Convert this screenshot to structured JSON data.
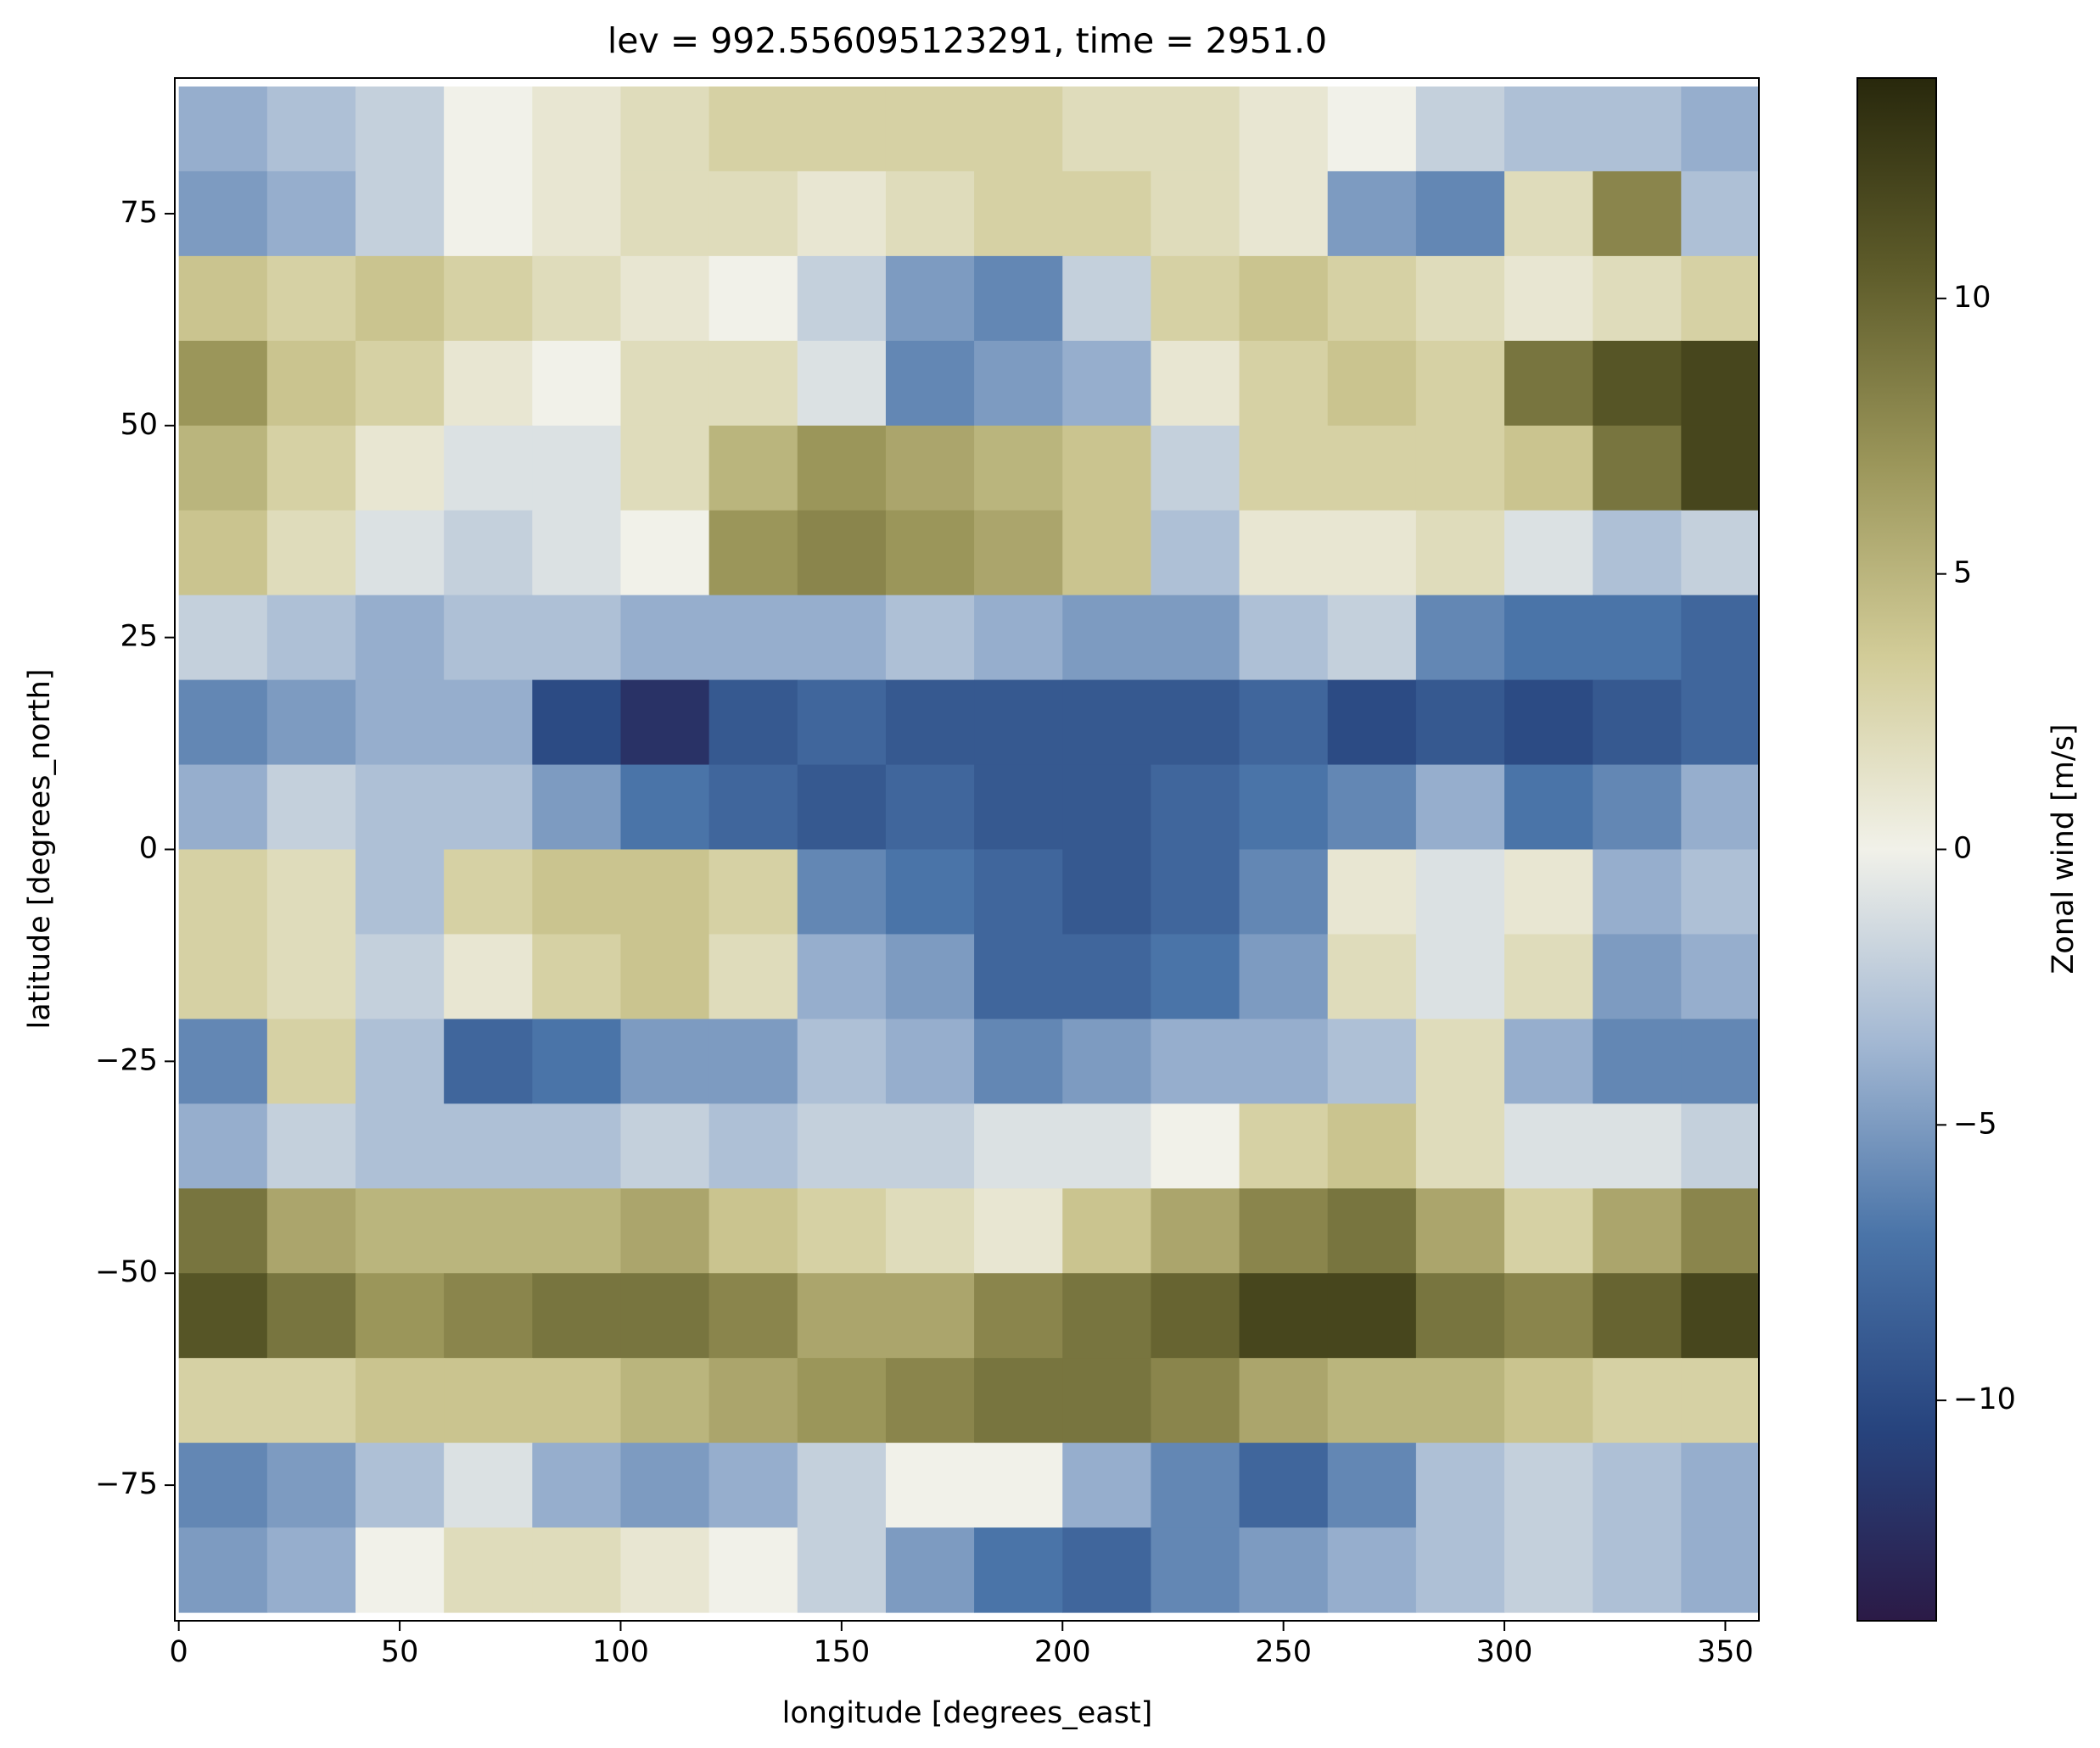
{
  "chart_data": {
    "type": "heatmap",
    "title": "lev = 992.556095123291, time = 2951.0",
    "xlabel": "longitude [degrees_east]",
    "ylabel": "latitude [degrees_north]",
    "colorbar_label": "Zonal wind [m/s]",
    "x": [
      10,
      30,
      50,
      70,
      90,
      110,
      130,
      150,
      170,
      190,
      210,
      230,
      250,
      270,
      290,
      310,
      330,
      350
    ],
    "y": [
      85,
      75,
      65,
      55,
      45,
      35,
      25,
      15,
      5,
      -5,
      -15,
      -25,
      -35,
      -45,
      -55,
      -65,
      -75,
      -85
    ],
    "values": [
      [
        -4,
        -3,
        -2,
        0,
        1,
        2,
        3,
        3,
        3,
        3,
        2,
        2,
        1,
        0,
        -2,
        -3,
        -3,
        -4
      ],
      [
        -5,
        -4,
        -2,
        0,
        1,
        2,
        2,
        1,
        2,
        3,
        3,
        2,
        1,
        -5,
        -6,
        2,
        8,
        -3
      ],
      [
        4,
        3,
        4,
        3,
        2,
        1,
        0,
        -2,
        -5,
        -6,
        -2,
        3,
        4,
        3,
        2,
        1,
        2,
        3
      ],
      [
        7,
        4,
        3,
        1,
        0,
        2,
        2,
        -1,
        -6,
        -5,
        -4,
        1,
        3,
        4,
        3,
        9,
        11,
        12
      ],
      [
        5,
        3,
        1,
        -1,
        -1,
        2,
        5,
        7,
        6,
        5,
        4,
        -2,
        3,
        3,
        3,
        4,
        9,
        12
      ],
      [
        4,
        2,
        -1,
        -2,
        -1,
        0,
        7,
        8,
        7,
        6,
        4,
        -3,
        1,
        1,
        2,
        -1,
        -3,
        -2
      ],
      [
        -2,
        -3,
        -4,
        -3,
        -3,
        -4,
        -4,
        -4,
        -3,
        -4,
        -5,
        -5,
        -3,
        -2,
        -6,
        -7,
        -7,
        -8
      ],
      [
        -6,
        -5,
        -4,
        -4,
        -10,
        -12,
        -9,
        -8,
        -9,
        -9,
        -9,
        -9,
        -8,
        -10,
        -9,
        -10,
        -9,
        -8
      ],
      [
        -4,
        -2,
        -3,
        -3,
        -5,
        -7,
        -8,
        -9,
        -8,
        -9,
        -9,
        -8,
        -7,
        -6,
        -4,
        -7,
        -6,
        -4
      ],
      [
        3,
        2,
        -3,
        3,
        4,
        4,
        3,
        -6,
        -7,
        -8,
        -9,
        -8,
        -6,
        1,
        -1,
        1,
        -4,
        -3
      ],
      [
        3,
        2,
        -2,
        1,
        3,
        4,
        2,
        -4,
        -5,
        -8,
        -8,
        -7,
        -5,
        2,
        -1,
        2,
        -5,
        -4
      ],
      [
        -6,
        3,
        -3,
        -8,
        -7,
        -5,
        -5,
        -3,
        -4,
        -6,
        -5,
        -4,
        -4,
        -3,
        2,
        -4,
        -6,
        -6
      ],
      [
        -4,
        -2,
        -3,
        -3,
        -3,
        -2,
        -3,
        -2,
        -2,
        -1,
        -1,
        0,
        3,
        4,
        2,
        -1,
        -1,
        -2
      ],
      [
        9,
        6,
        5,
        5,
        5,
        6,
        4,
        3,
        2,
        1,
        4,
        6,
        8,
        9,
        6,
        3,
        6,
        8
      ],
      [
        11,
        9,
        7,
        8,
        9,
        9,
        8,
        6,
        6,
        8,
        9,
        10,
        12,
        12,
        9,
        8,
        10,
        12
      ],
      [
        3,
        3,
        4,
        4,
        4,
        5,
        6,
        7,
        8,
        9,
        9,
        8,
        6,
        5,
        5,
        4,
        3,
        3
      ],
      [
        -6,
        -5,
        -3,
        -1,
        -4,
        -5,
        -4,
        -2,
        0,
        0,
        -4,
        -6,
        -8,
        -6,
        -3,
        -2,
        -3,
        -4
      ],
      [
        -5,
        -4,
        0,
        2,
        2,
        1,
        0,
        -2,
        -5,
        -7,
        -8,
        -6,
        -5,
        -4,
        -3,
        -2,
        -3,
        -4
      ]
    ],
    "xlim": [
      -0.9,
      357.6
    ],
    "ylim": [
      -91,
      91
    ],
    "xticks": [
      0,
      50,
      100,
      150,
      200,
      250,
      300,
      350
    ],
    "yticks": [
      {
        "value": -75,
        "label": "−75"
      },
      {
        "value": -50,
        "label": "−50"
      },
      {
        "value": -25,
        "label": "−25"
      },
      0,
      25,
      50,
      75
    ],
    "clim": [
      -14,
      14
    ],
    "cticks": [
      {
        "value": -10,
        "label": "−10"
      },
      {
        "value": -5,
        "label": "−5"
      },
      0,
      5,
      10
    ],
    "colormap": [
      "#2b1a46",
      "#27447e",
      "#4a74a8",
      "#a3b8d3",
      "#f1f1e9",
      "#d2cc98",
      "#9b965a",
      "#5e5c2a",
      "#28280c"
    ]
  }
}
